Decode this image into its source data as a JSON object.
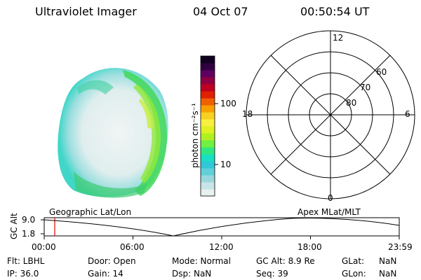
{
  "header": {
    "title": "Ultraviolet Imager",
    "date": "04 Oct 07",
    "time": "00:50:54 UT"
  },
  "colorbar": {
    "label": "photon cm⁻²s⁻¹",
    "ticks": [
      "100",
      "10"
    ],
    "colors": [
      "#e8f0f0",
      "#c8e4e8",
      "#98d8dc",
      "#60d0d8",
      "#30c8d8",
      "#18e0c0",
      "#30e880",
      "#70f040",
      "#b0f020",
      "#e0f020",
      "#f8f040",
      "#f8d020",
      "#f8a000",
      "#f06000",
      "#e02000",
      "#c00020",
      "#900040",
      "#600060",
      "#300040",
      "#100020"
    ]
  },
  "polar": {
    "mlt_labels": [
      "12",
      "18",
      "6",
      "0"
    ],
    "lat_labels": [
      "60",
      "70",
      "80"
    ]
  },
  "timeline": {
    "ylabel": "GC Alt",
    "ymax": "9.0",
    "ymin": "1.8",
    "left_label": "Geographic Lat/Lon",
    "right_label": "Apex  MLat/MLT",
    "xticks": [
      "00:00",
      "06:00",
      "12:00",
      "18:00",
      "23:59"
    ]
  },
  "info": {
    "flt": "Flt: LBHL",
    "ip": "IP: 36.0",
    "door": "Door: Open",
    "gain": "Gain: 14",
    "mode": "Mode: Normal",
    "dsp": "Dsp:     NaN",
    "gcalt": "GC Alt: 8.9 Re",
    "seq": "Seq: 39",
    "glat": "GLat:",
    "glat_val": "NaN",
    "glon": "GLon:",
    "glon_val": "NaN"
  }
}
